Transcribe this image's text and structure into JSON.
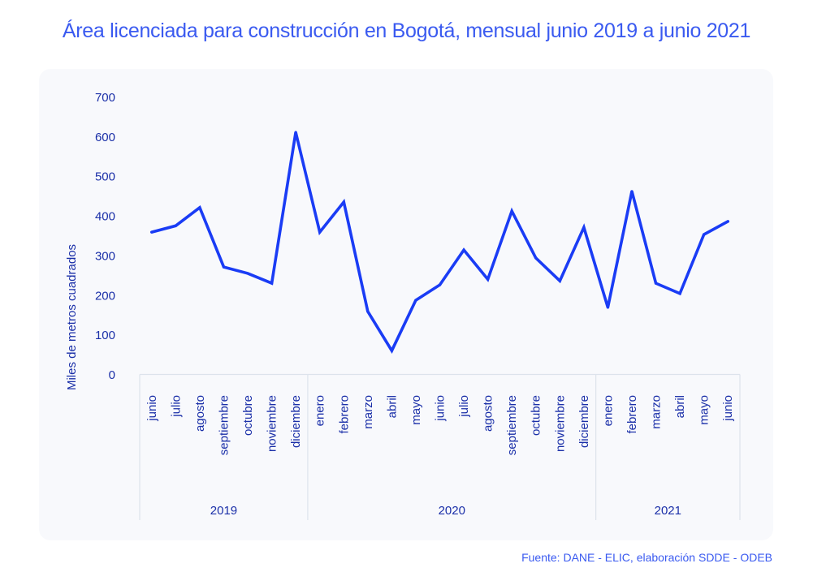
{
  "chart_data": {
    "type": "line",
    "title": "Área licenciada para construcción en Bogotá, mensual junio 2019 a junio 2021",
    "ylabel": "Miles de metros cuadrados",
    "xlabel": "",
    "ylim": [
      0,
      700
    ],
    "yticks": [
      0,
      100,
      200,
      300,
      400,
      500,
      600,
      700
    ],
    "grid": false,
    "line_color": "#1a3cf5",
    "groups": [
      {
        "year": "2019",
        "months": [
          "junio",
          "julio",
          "agosto",
          "septiembre",
          "octubre",
          "noviembre",
          "diciembre"
        ]
      },
      {
        "year": "2020",
        "months": [
          "enero",
          "febrero",
          "marzo",
          "abril",
          "mayo",
          "junio",
          "julio",
          "agosto",
          "septiembre",
          "octubre",
          "noviembre",
          "diciembre"
        ]
      },
      {
        "year": "2021",
        "months": [
          "enero",
          "febrero",
          "marzo",
          "abril",
          "mayo",
          "junio"
        ]
      }
    ],
    "series": [
      {
        "name": "Área licenciada",
        "values": [
          360,
          376,
          422,
          272,
          256,
          231,
          612,
          360,
          436,
          160,
          61,
          188,
          227,
          315,
          241,
          413,
          295,
          237,
          372,
          170,
          463,
          231,
          205,
          354,
          387
        ]
      }
    ]
  },
  "source": "Fuente: DANE - ELIC, elaboración SDDE - ODEB"
}
